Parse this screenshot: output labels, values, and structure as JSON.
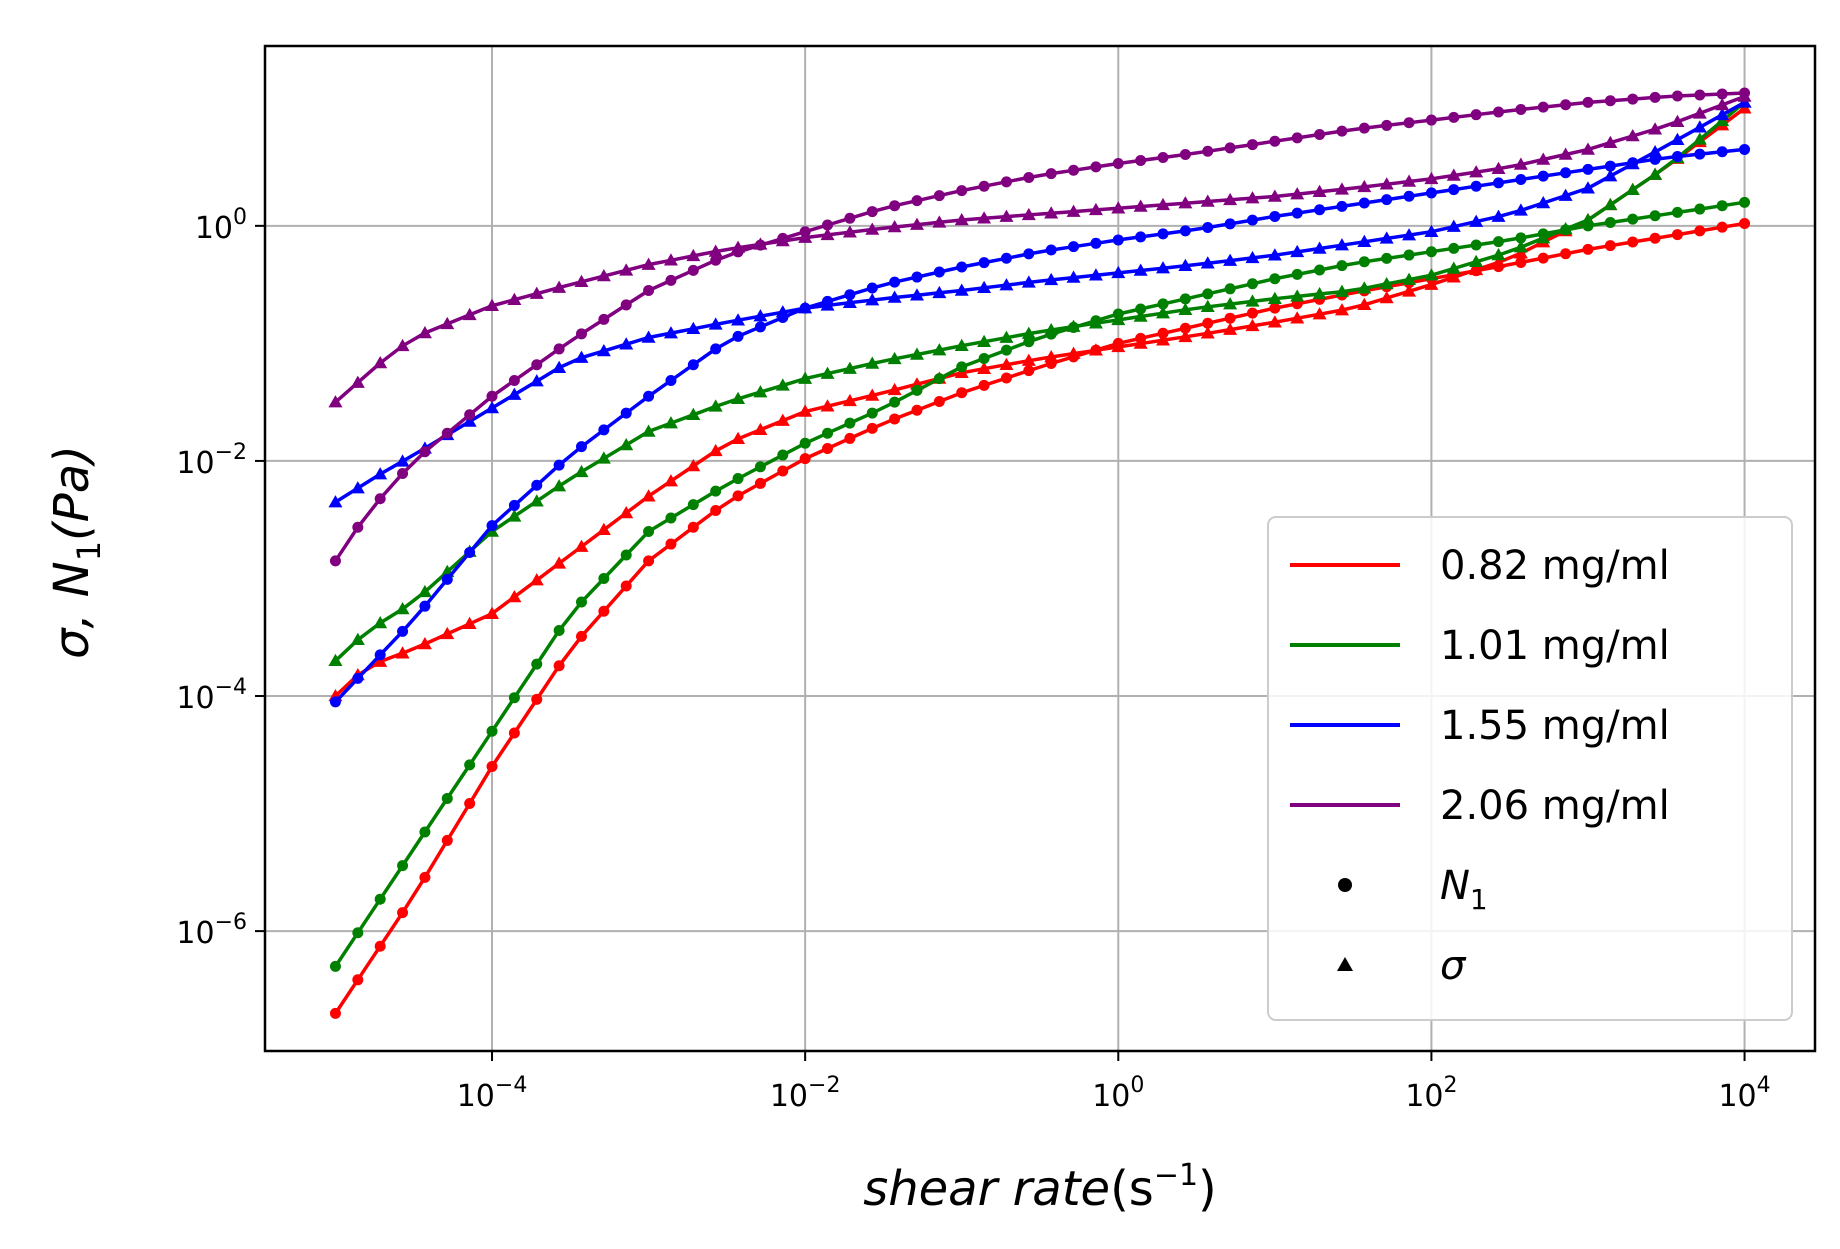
{
  "chart_data": {
    "type": "line",
    "title": "",
    "xlabel_main": "shear rate",
    "xlabel_paren": "(s",
    "xlabel_exp": "−1",
    "xlabel_close": ")",
    "ylabel_sigma": "σ,",
    "ylabel_N": "N",
    "ylabel_sub": "1",
    "ylabel_unit": "(Pa)",
    "xscale": "log",
    "yscale": "log",
    "xlim_exp": [
      -5.45,
      4.45
    ],
    "ylim_exp": [
      -7.02,
      1.53
    ],
    "grid": true,
    "legend_position": "lower right",
    "x_ticks": [
      {
        "exp": -4,
        "base": "10",
        "sup": "−4"
      },
      {
        "exp": -2,
        "base": "10",
        "sup": "−2"
      },
      {
        "exp": 0,
        "base": "10",
        "sup": "0"
      },
      {
        "exp": 2,
        "base": "10",
        "sup": "2"
      },
      {
        "exp": 4,
        "base": "10",
        "sup": "4"
      }
    ],
    "y_ticks": [
      {
        "exp": -6,
        "base": "10",
        "sup": "−6"
      },
      {
        "exp": -4,
        "base": "10",
        "sup": "−4"
      },
      {
        "exp": -2,
        "base": "10",
        "sup": "−2"
      },
      {
        "exp": 0,
        "base": "10",
        "sup": "0"
      }
    ],
    "x_range_exp": [
      -5,
      4
    ],
    "points_per_series": 64,
    "series": [
      {
        "name": "0.82 mg/ml",
        "color": "#ff0000",
        "N1_log": [
          [
            -5,
            -6.7
          ],
          [
            -4.5,
            -5.7
          ],
          [
            -4,
            -4.6
          ],
          [
            -3.5,
            -3.6
          ],
          [
            -3,
            -2.85
          ],
          [
            -2.5,
            -2.35
          ],
          [
            -2,
            -1.98
          ],
          [
            -1.5,
            -1.68
          ],
          [
            -1,
            -1.42
          ],
          [
            -0.5,
            -1.2
          ],
          [
            0,
            -1.0
          ],
          [
            0.5,
            -0.85
          ],
          [
            1,
            -0.7
          ],
          [
            1.5,
            -0.57
          ],
          [
            2,
            -0.45
          ],
          [
            2.5,
            -0.33
          ],
          [
            3,
            -0.2
          ],
          [
            3.5,
            -0.09
          ],
          [
            4,
            0.02
          ]
        ],
        "sigma_log": [
          [
            -5,
            -4.0
          ],
          [
            -4.8,
            -3.75
          ],
          [
            -4.5,
            -3.6
          ],
          [
            -4,
            -3.3
          ],
          [
            -3.5,
            -2.8
          ],
          [
            -3,
            -2.3
          ],
          [
            -2.5,
            -1.85
          ],
          [
            -2,
            -1.58
          ],
          [
            -1.5,
            -1.42
          ],
          [
            -1,
            -1.25
          ],
          [
            -0.5,
            -1.13
          ],
          [
            0,
            -1.03
          ],
          [
            0.5,
            -0.93
          ],
          [
            1,
            -0.82
          ],
          [
            1.5,
            -0.7
          ],
          [
            2,
            -0.5
          ],
          [
            2.5,
            -0.28
          ],
          [
            3,
            0.05
          ],
          [
            3.5,
            0.5
          ],
          [
            4,
            1.0
          ]
        ]
      },
      {
        "name": "1.01 mg/ml",
        "color": "#008000",
        "N1_log": [
          [
            -5,
            -6.3
          ],
          [
            -4.5,
            -5.3
          ],
          [
            -4,
            -4.3
          ],
          [
            -3.5,
            -3.3
          ],
          [
            -3,
            -2.6
          ],
          [
            -2.5,
            -2.2
          ],
          [
            -2,
            -1.85
          ],
          [
            -1.5,
            -1.55
          ],
          [
            -1,
            -1.2
          ],
          [
            -0.5,
            -0.95
          ],
          [
            0,
            -0.75
          ],
          [
            0.5,
            -0.6
          ],
          [
            1,
            -0.45
          ],
          [
            1.5,
            -0.32
          ],
          [
            2,
            -0.22
          ],
          [
            2.5,
            -0.12
          ],
          [
            3,
            0.0
          ],
          [
            3.5,
            0.1
          ],
          [
            4,
            0.2
          ]
        ],
        "sigma_log": [
          [
            -5,
            -3.7
          ],
          [
            -4.8,
            -3.45
          ],
          [
            -4.5,
            -3.2
          ],
          [
            -4,
            -2.6
          ],
          [
            -3.5,
            -2.15
          ],
          [
            -3,
            -1.75
          ],
          [
            -2.5,
            -1.5
          ],
          [
            -2,
            -1.3
          ],
          [
            -1.5,
            -1.15
          ],
          [
            -1,
            -1.02
          ],
          [
            -0.5,
            -0.9
          ],
          [
            0,
            -0.8
          ],
          [
            0.5,
            -0.7
          ],
          [
            1,
            -0.62
          ],
          [
            1.5,
            -0.55
          ],
          [
            2,
            -0.42
          ],
          [
            2.5,
            -0.22
          ],
          [
            3,
            0.05
          ],
          [
            3.5,
            0.5
          ],
          [
            4,
            1.05
          ]
        ]
      },
      {
        "name": "1.55 mg/ml",
        "color": "#0000ff",
        "N1_log": [
          [
            -5,
            -4.05
          ],
          [
            -4.5,
            -3.35
          ],
          [
            -4,
            -2.55
          ],
          [
            -3.5,
            -1.95
          ],
          [
            -3,
            -1.45
          ],
          [
            -2.5,
            -0.98
          ],
          [
            -2,
            -0.7
          ],
          [
            -1.5,
            -0.5
          ],
          [
            -1,
            -0.35
          ],
          [
            -0.5,
            -0.22
          ],
          [
            0,
            -0.12
          ],
          [
            0.5,
            -0.03
          ],
          [
            1,
            0.08
          ],
          [
            1.5,
            0.18
          ],
          [
            2,
            0.28
          ],
          [
            2.5,
            0.38
          ],
          [
            3,
            0.48
          ],
          [
            3.5,
            0.58
          ],
          [
            4,
            0.65
          ]
        ],
        "sigma_log": [
          [
            -5,
            -2.35
          ],
          [
            -4.7,
            -2.1
          ],
          [
            -4.5,
            -1.95
          ],
          [
            -4,
            -1.55
          ],
          [
            -3.5,
            -1.15
          ],
          [
            -3,
            -0.95
          ],
          [
            -2.5,
            -0.82
          ],
          [
            -2,
            -0.7
          ],
          [
            -1.5,
            -0.62
          ],
          [
            -1,
            -0.55
          ],
          [
            -0.5,
            -0.47
          ],
          [
            0,
            -0.4
          ],
          [
            0.5,
            -0.33
          ],
          [
            1,
            -0.25
          ],
          [
            1.5,
            -0.15
          ],
          [
            2,
            -0.05
          ],
          [
            2.5,
            0.1
          ],
          [
            3,
            0.32
          ],
          [
            3.5,
            0.68
          ],
          [
            4,
            1.05
          ]
        ]
      },
      {
        "name": "2.06 mg/ml",
        "color": "#800080",
        "N1_log": [
          [
            -5,
            -2.85
          ],
          [
            -4.8,
            -2.45
          ],
          [
            -4.5,
            -2.0
          ],
          [
            -4,
            -1.45
          ],
          [
            -3.5,
            -0.98
          ],
          [
            -3,
            -0.55
          ],
          [
            -2.5,
            -0.25
          ],
          [
            -2,
            -0.05
          ],
          [
            -1.5,
            0.15
          ],
          [
            -1,
            0.3
          ],
          [
            -0.5,
            0.43
          ],
          [
            0,
            0.53
          ],
          [
            0.5,
            0.62
          ],
          [
            1,
            0.72
          ],
          [
            1.5,
            0.82
          ],
          [
            2,
            0.9
          ],
          [
            2.5,
            0.98
          ],
          [
            3,
            1.05
          ],
          [
            3.5,
            1.1
          ],
          [
            4,
            1.13
          ]
        ],
        "sigma_log": [
          [
            -5,
            -1.5
          ],
          [
            -4.7,
            -1.15
          ],
          [
            -4.5,
            -0.95
          ],
          [
            -4,
            -0.68
          ],
          [
            -3.5,
            -0.5
          ],
          [
            -3,
            -0.33
          ],
          [
            -2.5,
            -0.2
          ],
          [
            -2,
            -0.1
          ],
          [
            -1.5,
            -0.02
          ],
          [
            -1,
            0.05
          ],
          [
            -0.5,
            0.1
          ],
          [
            0,
            0.15
          ],
          [
            0.5,
            0.2
          ],
          [
            1,
            0.25
          ],
          [
            1.5,
            0.32
          ],
          [
            2,
            0.4
          ],
          [
            2.5,
            0.5
          ],
          [
            3,
            0.65
          ],
          [
            3.5,
            0.85
          ],
          [
            4,
            1.1
          ]
        ]
      }
    ],
    "legend_markers": [
      {
        "label": "N",
        "sub": "1",
        "marker": "circle"
      },
      {
        "label": "σ",
        "sub": "",
        "marker": "triangle"
      }
    ]
  }
}
